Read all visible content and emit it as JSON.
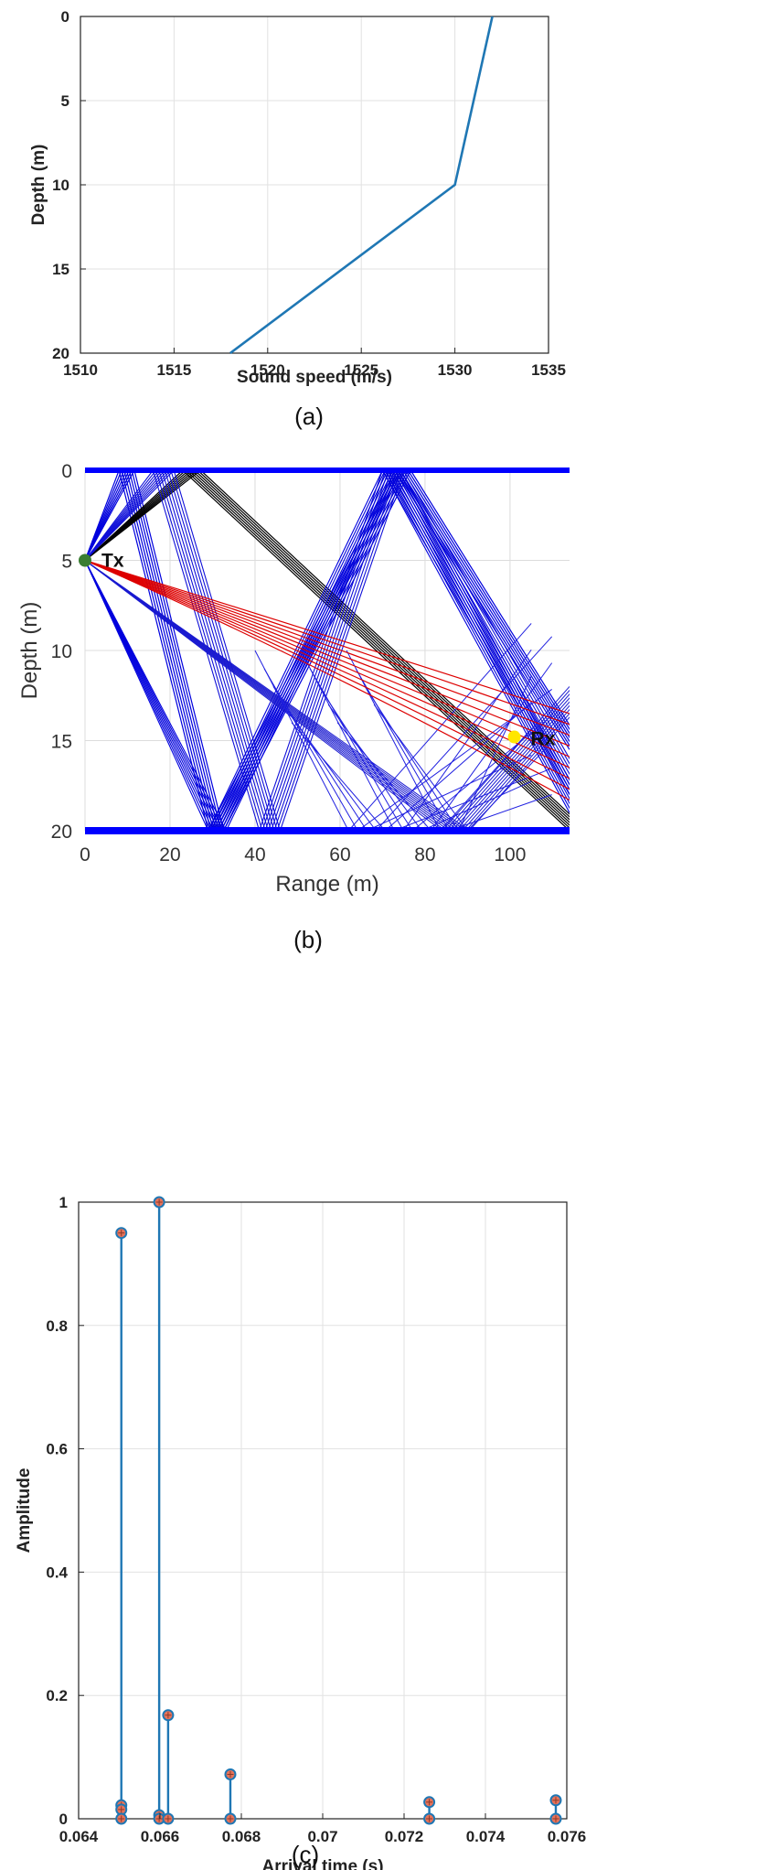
{
  "chart_data": [
    {
      "id": "a",
      "type": "line",
      "caption": "(a)",
      "xlabel": "Sound speed (m/s)",
      "ylabel": "Depth (m)",
      "xlim": [
        1510,
        1535
      ],
      "ylim": [
        0,
        20
      ],
      "y_reversed": true,
      "grid": true,
      "xticks": [
        1510,
        1515,
        1520,
        1525,
        1530,
        1535
      ],
      "yticks": [
        0,
        5,
        10,
        15,
        20
      ],
      "series": [
        {
          "color": "#1f77b4",
          "points": [
            [
              1532,
              0
            ],
            [
              1530,
              10
            ],
            [
              1518,
              20
            ]
          ]
        }
      ]
    },
    {
      "id": "b",
      "type": "line",
      "caption": "(b)",
      "xlabel": "Range (m)",
      "ylabel": "Depth (m)",
      "xlim": [
        0,
        114
      ],
      "ylim": [
        0,
        20
      ],
      "y_reversed": true,
      "grid": true,
      "xticks": [
        0,
        20,
        40,
        60,
        80,
        100
      ],
      "yticks": [
        0,
        5,
        10,
        15,
        20
      ],
      "tx": {
        "label": "Tx",
        "range": 0,
        "depth": 5,
        "color": "#3a7d32"
      },
      "rx": {
        "label": "Rx",
        "range": 101,
        "depth": 14.8,
        "color": "#ffe600"
      },
      "boundary_color": "#0000ff",
      "ray_families": [
        {
          "color": "#0000dd",
          "width": 1.2,
          "offsets": [
            0,
            0.6,
            1.2,
            1.8,
            2.4,
            3.0,
            3.6
          ],
          "segments": [
            [
              0,
              5
            ],
            [
              8,
              0
            ],
            [
              29,
              20
            ],
            [
              73,
              0
            ],
            [
              114,
              15.5
            ]
          ]
        },
        {
          "color": "#000000",
          "width": 1.2,
          "offsets": [
            0,
            0.7,
            1.4,
            2.1,
            2.8,
            3.5,
            4.2
          ],
          "segments": [
            [
              0,
              5
            ],
            [
              23,
              0
            ],
            [
              114,
              20
            ]
          ]
        },
        {
          "color": "#1010d8",
          "width": 1.1,
          "offsets": [
            0,
            0.7,
            1.4,
            2.1,
            2.8,
            3.5,
            4.2,
            4.9
          ],
          "segments": [
            [
              0,
              5
            ],
            [
              16,
              0
            ],
            [
              41,
              20
            ],
            [
              70,
              0
            ],
            [
              114,
              18
            ]
          ]
        },
        {
          "color": "#0000dd",
          "width": 1.1,
          "offsets": [
            0,
            0.6,
            1.2,
            1.8,
            2.4,
            3.0,
            3.6,
            4.2
          ],
          "segments": [
            [
              0,
              5
            ],
            [
              29,
              20
            ],
            [
              70,
              0
            ],
            [
              114,
              19
            ]
          ]
        },
        {
          "color": "#1a1ad0",
          "width": 1.0,
          "offsets": [
            0,
            0.8,
            1.6,
            2.4,
            3.2,
            4.0,
            4.8,
            5.6,
            6.4
          ],
          "segments": [
            [
              0,
              5
            ],
            [
              84,
              20
            ],
            [
              114,
              12
            ]
          ]
        }
      ],
      "bottom_fans": [
        {
          "color": "#2020e0",
          "width": 1.0,
          "from_x": [
            62,
            90
          ],
          "to_x": [
            105,
            114
          ],
          "to_depth": [
            8.5,
            18
          ]
        }
      ],
      "direct_rays": {
        "color": "#dd0000",
        "width": 1.2,
        "offsets": [
          0,
          0.6,
          1.2,
          1.8,
          2.4,
          3.0,
          3.6,
          4.2,
          4.8
        ],
        "start": [
          0,
          5
        ],
        "mid": [
          55,
          9
        ],
        "end_x": 114,
        "end_depth_base": 13.5
      }
    },
    {
      "id": "c",
      "type": "stem",
      "caption": "(c)",
      "xlabel": "Arrival time (s)",
      "ylabel": "Amplitude",
      "xlim": [
        0.064,
        0.076
      ],
      "ylim": [
        0,
        1
      ],
      "grid": true,
      "xticks": [
        0.064,
        0.066,
        0.068,
        0.07,
        0.072,
        0.074,
        0.076
      ],
      "xtick_labels": [
        "0.064",
        "0.066",
        "0.068",
        "0.07",
        "0.072",
        "0.074",
        "0.076"
      ],
      "yticks": [
        0,
        0.2,
        0.4,
        0.6,
        0.8,
        1
      ],
      "ytick_labels": [
        "0",
        "0.2",
        "0.4",
        "0.6",
        "0.8",
        "1"
      ],
      "stem_color": "#1f77b4",
      "marker_fill": "#e8735a",
      "stems": [
        {
          "x": 0.06505,
          "y": 0.95
        },
        {
          "x": 0.06505,
          "y": 0.022
        },
        {
          "x": 0.06505,
          "y": 0.015
        },
        {
          "x": 0.06505,
          "y": 0.0
        },
        {
          "x": 0.06598,
          "y": 1.0
        },
        {
          "x": 0.06598,
          "y": 0.006
        },
        {
          "x": 0.06598,
          "y": 0.0
        },
        {
          "x": 0.0662,
          "y": 0.168
        },
        {
          "x": 0.0662,
          "y": 0.0
        },
        {
          "x": 0.06773,
          "y": 0.072
        },
        {
          "x": 0.06773,
          "y": 0.0
        },
        {
          "x": 0.07262,
          "y": 0.027
        },
        {
          "x": 0.07262,
          "y": 0.0
        },
        {
          "x": 0.07573,
          "y": 0.03
        },
        {
          "x": 0.07573,
          "y": 0.0
        }
      ]
    }
  ]
}
